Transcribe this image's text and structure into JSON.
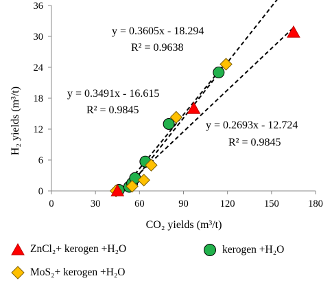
{
  "chart_data": {
    "type": "scatter",
    "xlabel": "CO₂ yields (m³/t)",
    "ylabel": "H₂ yields (m³/t)",
    "xlim": [
      0,
      180
    ],
    "ylim": [
      0,
      36
    ],
    "xticks": [
      "0",
      "30",
      "60",
      "90",
      "120",
      "150",
      "180"
    ],
    "yticks": [
      "0",
      "6",
      "12",
      "18",
      "24",
      "30",
      "36"
    ],
    "grid": false,
    "series": [
      {
        "name": "ZnCl₂+ kerogen +H₂O",
        "marker": "triangle",
        "color": "#ff0000",
        "points": [
          [
            45,
            0
          ],
          [
            97,
            16
          ],
          [
            165,
            30.8
          ]
        ]
      },
      {
        "name": "kerogen +H₂O",
        "marker": "circle",
        "color": "#22b14c",
        "points": [
          [
            46,
            0.2
          ],
          [
            53,
            0.8
          ],
          [
            55,
            1.5
          ],
          [
            57,
            2.5
          ],
          [
            64,
            5.7
          ],
          [
            80,
            13
          ],
          [
            114,
            23
          ]
        ]
      },
      {
        "name": "MoS₂+ kerogen +H₂O",
        "marker": "diamond",
        "color": "#ffc000",
        "points": [
          [
            44,
            0
          ],
          [
            55,
            0.9
          ],
          [
            63,
            2.1
          ],
          [
            68,
            5
          ],
          [
            85,
            14.3
          ],
          [
            119,
            24.6
          ]
        ]
      }
    ],
    "trendlines": [
      {
        "slope": 0.3605,
        "intercept": -18.294,
        "x_range": [
          51,
          165
        ]
      },
      {
        "slope": 0.3491,
        "intercept": -16.615,
        "x_range": [
          48,
          119
        ]
      },
      {
        "slope": 0.2693,
        "intercept": -12.724,
        "x_range": [
          47,
          165
        ]
      }
    ],
    "annotations": [
      {
        "eq": "y = 0.3605x - 18.294",
        "r2": "R² = 0.9638"
      },
      {
        "eq": "y = 0.3491x - 16.615",
        "r2": "R² = 0.9845"
      },
      {
        "eq": "y = 0.2693x - 12.724",
        "r2": "R² = 0.9845"
      }
    ]
  }
}
